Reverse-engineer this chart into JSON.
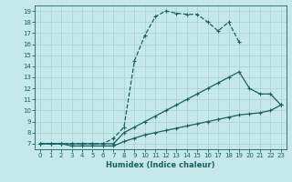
{
  "xlabel": "Humidex (Indice chaleur)",
  "bg_color": "#c5e8e8",
  "grid_color": "#a8d0d0",
  "line_color": "#1a6060",
  "xlim": [
    -0.5,
    23.5
  ],
  "ylim": [
    6.5,
    19.5
  ],
  "xticks": [
    0,
    1,
    2,
    3,
    4,
    5,
    6,
    7,
    8,
    9,
    10,
    11,
    12,
    13,
    14,
    15,
    16,
    17,
    18,
    19,
    20,
    21,
    22,
    23
  ],
  "yticks": [
    7,
    8,
    9,
    10,
    11,
    12,
    13,
    14,
    15,
    16,
    17,
    18,
    19
  ],
  "line_dashed_x": [
    0,
    1,
    2,
    3,
    4,
    5,
    6,
    7,
    8,
    9,
    10,
    11,
    12,
    13,
    14,
    15,
    16,
    17,
    18,
    19
  ],
  "line_dashed_y": [
    7.0,
    7.0,
    7.0,
    7.0,
    7.0,
    7.0,
    7.0,
    7.5,
    8.5,
    14.5,
    16.8,
    18.5,
    19.0,
    18.8,
    18.7,
    18.7,
    18.0,
    17.2,
    18.0,
    16.2
  ],
  "line_mid_x": [
    0,
    1,
    2,
    3,
    4,
    5,
    6,
    7,
    8,
    9,
    10,
    11,
    12,
    13,
    14,
    15,
    16,
    17,
    18,
    19,
    20,
    21,
    22,
    23
  ],
  "line_mid_y": [
    7.0,
    7.0,
    7.0,
    7.0,
    7.0,
    7.0,
    7.0,
    7.0,
    8.0,
    8.5,
    9.0,
    9.5,
    10.0,
    10.5,
    11.0,
    11.5,
    12.0,
    12.5,
    13.0,
    13.5,
    12.0,
    11.5,
    11.5,
    10.5
  ],
  "line_flat_x": [
    0,
    1,
    2,
    3,
    4,
    5,
    6,
    7,
    8,
    9,
    10,
    11,
    12,
    13,
    14,
    15,
    16,
    17,
    18,
    19,
    20,
    21,
    22,
    23
  ],
  "line_flat_y": [
    7.0,
    7.0,
    7.0,
    6.8,
    6.8,
    6.8,
    6.8,
    6.8,
    7.2,
    7.5,
    7.8,
    8.0,
    8.2,
    8.4,
    8.6,
    8.8,
    9.0,
    9.2,
    9.4,
    9.6,
    9.7,
    9.8,
    10.0,
    10.5
  ]
}
